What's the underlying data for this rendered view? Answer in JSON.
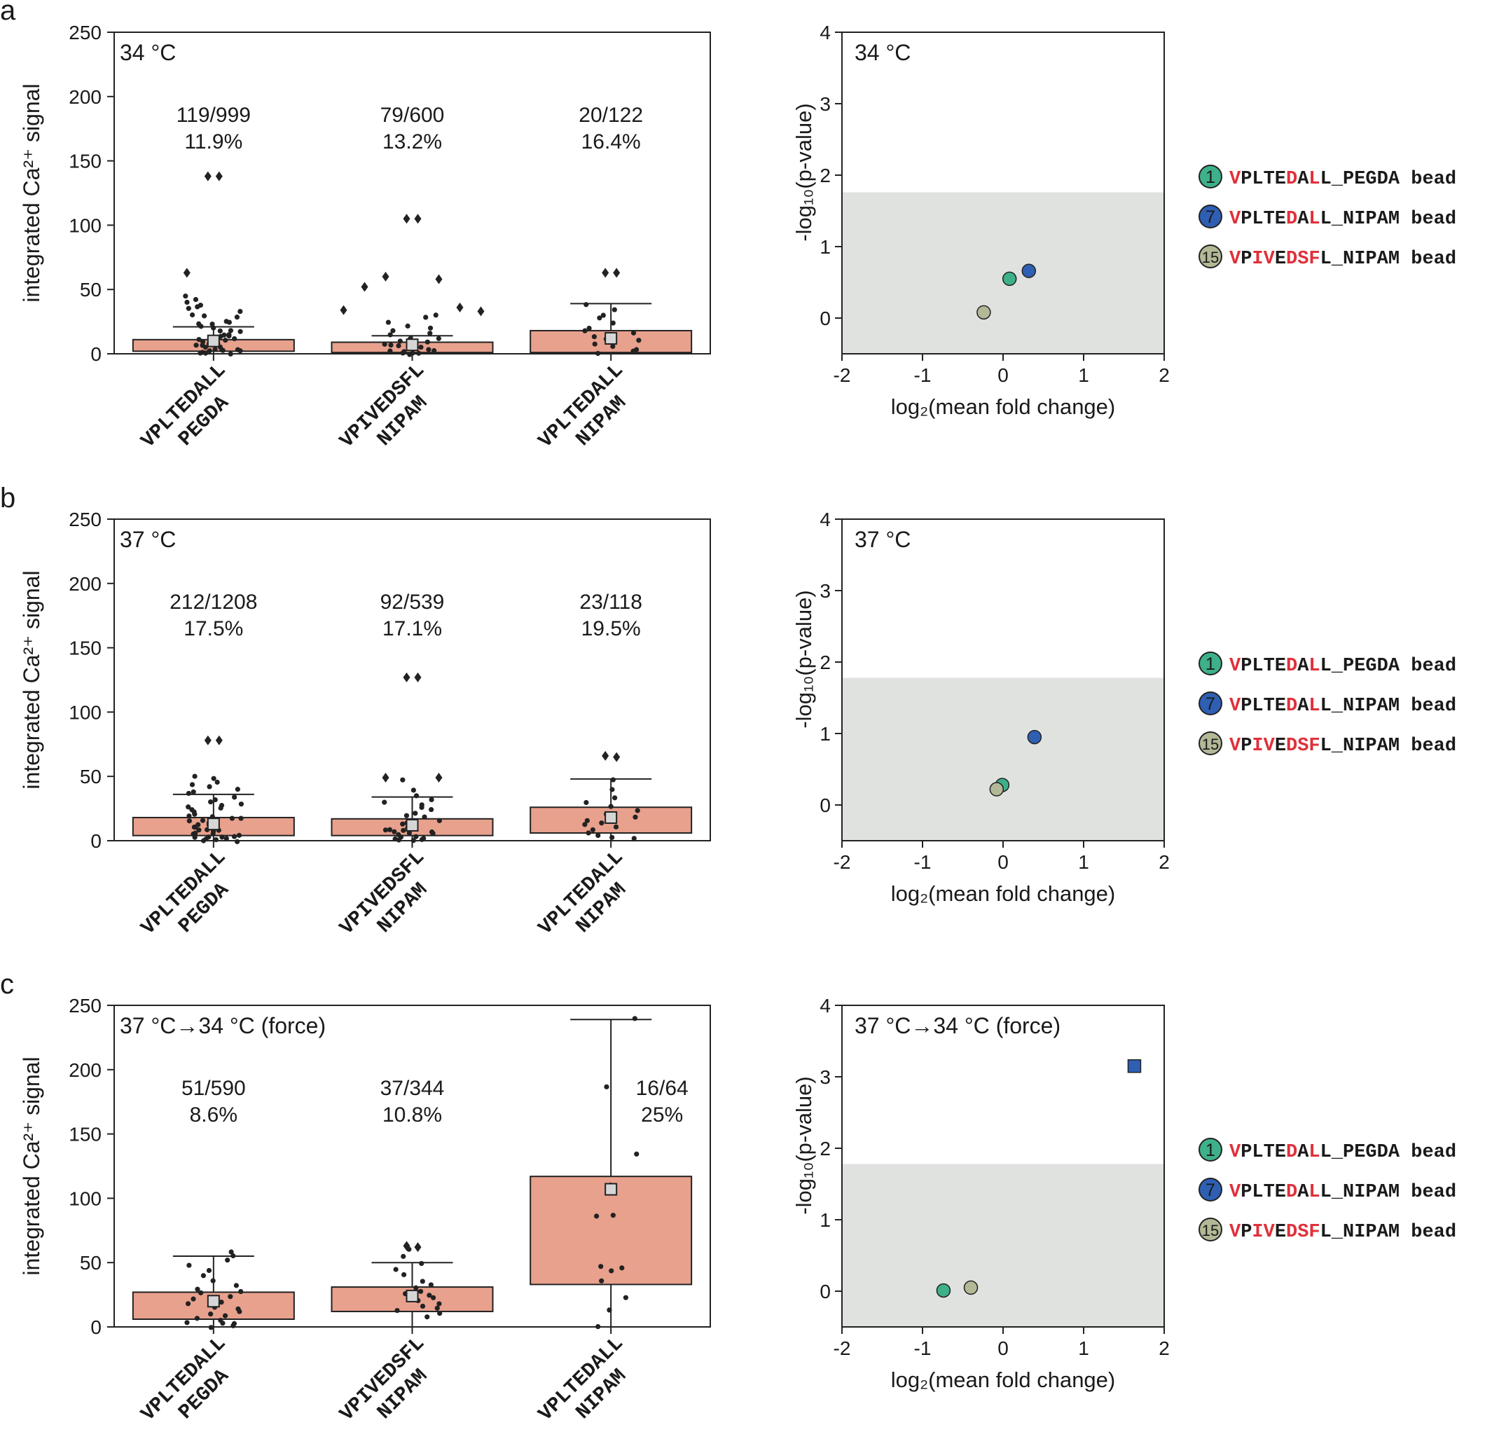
{
  "figure": {
    "colors": {
      "box": "#e8a18d",
      "shade": "#e0e2e0",
      "point": "#222222",
      "mean": "#d6d6d6",
      "red": "#e0303a",
      "teal": "#3eb08a",
      "blue": "#2f5fb3",
      "olive": "#b3b896"
    },
    "legend": [
      {
        "num": "1",
        "color": "teal",
        "segs": [
          [
            "V",
            "r"
          ],
          [
            "PLTE",
            "k"
          ],
          [
            "D",
            "r"
          ],
          [
            "A",
            "k"
          ],
          [
            "L",
            "r"
          ],
          [
            "L_PEGDA bead",
            "k"
          ]
        ]
      },
      {
        "num": "7",
        "color": "blue",
        "segs": [
          [
            "V",
            "r"
          ],
          [
            "PLTE",
            "k"
          ],
          [
            "D",
            "r"
          ],
          [
            "A",
            "k"
          ],
          [
            "L",
            "r"
          ],
          [
            "L_NIPAM bead",
            "k"
          ]
        ]
      },
      {
        "num": "15",
        "color": "olive",
        "segs": [
          [
            "V",
            "r"
          ],
          [
            "P",
            "k"
          ],
          [
            "IV",
            "r"
          ],
          [
            "E",
            "k"
          ],
          [
            "DSF",
            "r"
          ],
          [
            "L_NIPAM bead",
            "k"
          ]
        ]
      }
    ]
  },
  "chart_data": [
    {
      "panel": "a",
      "type": "box",
      "title": "34 °C",
      "ylabel": "integrated Ca²⁺ signal",
      "ylim": [
        0,
        250
      ],
      "yticks": [
        0,
        50,
        100,
        150,
        200,
        250
      ],
      "groups": [
        {
          "line1": "VPLTEDALL",
          "line2": "PEGDA",
          "count": "119/999",
          "pct": "11.9%",
          "q1": 2,
          "q3": 11,
          "wlo": 0,
          "whi": 21,
          "mean": 10,
          "outliers": [
            138,
            138,
            63
          ],
          "points": [
            45,
            42,
            40,
            38,
            36,
            35,
            33,
            31,
            30,
            28,
            26,
            25,
            23,
            22,
            20,
            18,
            17,
            15,
            14,
            12,
            11,
            10,
            9,
            8,
            7,
            6,
            5,
            4,
            3,
            2,
            1,
            0,
            15,
            9,
            6,
            3,
            1,
            0,
            24,
            18,
            13,
            7,
            4,
            2
          ]
        },
        {
          "line1": "VPIVEDSFL",
          "line2": "NIPAM",
          "count": "79/600",
          "pct": "13.2%",
          "q1": 1,
          "q3": 9,
          "wlo": 0,
          "whi": 14,
          "mean": 7,
          "outliers": [
            105,
            105,
            60,
            58,
            52,
            36,
            34,
            33
          ],
          "points": [
            30,
            28,
            25,
            22,
            20,
            18,
            16,
            14,
            12,
            10,
            9,
            8,
            6,
            5,
            4,
            3,
            2,
            1,
            0,
            11,
            7,
            4,
            2,
            1,
            0
          ]
        },
        {
          "line1": "VPLTEDALL",
          "line2": "NIPAM",
          "count": "20/122",
          "pct": "16.4%",
          "q1": 1,
          "q3": 18,
          "wlo": 0,
          "whi": 39,
          "mean": 12,
          "outliers": [
            63,
            63
          ],
          "points": [
            38,
            35,
            30,
            28,
            24,
            20,
            18,
            16,
            14,
            12,
            10,
            8,
            6,
            4,
            2,
            1
          ]
        }
      ]
    },
    {
      "panel": "a",
      "type": "scatter",
      "title": "34 °C",
      "xlabel": "log₂(mean fold change)",
      "ylabel": "-log₁₀(p-value)",
      "xlim": [
        -2,
        2
      ],
      "ylim": [
        -0.5,
        4
      ],
      "xticks": [
        -2,
        -1,
        0,
        1,
        2
      ],
      "yticks": [
        0,
        1,
        2,
        3,
        4
      ],
      "threshold": 1.76,
      "points": [
        {
          "x": 0.08,
          "y": 0.55,
          "id": "1",
          "shape": "circle"
        },
        {
          "x": 0.32,
          "y": 0.66,
          "id": "7",
          "shape": "circle"
        },
        {
          "x": -0.24,
          "y": 0.08,
          "id": "15",
          "shape": "circle"
        }
      ]
    },
    {
      "panel": "b",
      "type": "box",
      "title": "37 °C",
      "ylabel": "integrated Ca²⁺ signal",
      "ylim": [
        0,
        250
      ],
      "yticks": [
        0,
        50,
        100,
        150,
        200,
        250
      ],
      "groups": [
        {
          "line1": "VPLTEDALL",
          "line2": "PEGDA",
          "count": "212/1208",
          "pct": "17.5%",
          "q1": 4,
          "q3": 18,
          "wlo": 0,
          "whi": 36,
          "mean": 13,
          "outliers": [
            78,
            78
          ],
          "points": [
            50,
            48,
            46,
            44,
            42,
            40,
            38,
            36,
            34,
            32,
            30,
            28,
            26,
            24,
            22,
            20,
            19,
            18,
            16,
            15,
            14,
            13,
            12,
            11,
            10,
            9,
            8,
            7,
            6,
            5,
            4,
            3,
            2,
            1,
            0,
            25,
            17,
            11,
            6,
            3,
            1,
            0,
            29,
            21,
            14,
            8,
            4,
            2
          ]
        },
        {
          "line1": "VPIVEDSFL",
          "line2": "NIPAM",
          "count": "92/539",
          "pct": "17.1%",
          "q1": 4,
          "q3": 17,
          "wlo": 0,
          "whi": 34,
          "mean": 12,
          "outliers": [
            127,
            127,
            49,
            49
          ],
          "points": [
            47,
            40,
            35,
            32,
            30,
            28,
            26,
            24,
            22,
            20,
            18,
            16,
            14,
            12,
            10,
            9,
            8,
            7,
            6,
            5,
            4,
            3,
            2,
            1,
            0,
            13,
            9,
            6,
            3,
            1,
            0
          ]
        },
        {
          "line1": "VPLTEDALL",
          "line2": "NIPAM",
          "count": "23/118",
          "pct": "19.5%",
          "q1": 6,
          "q3": 26,
          "wlo": 0,
          "whi": 48,
          "mean": 18,
          "outliers": [
            66,
            65
          ],
          "points": [
            48,
            40,
            34,
            30,
            26,
            24,
            20,
            18,
            16,
            14,
            12,
            10,
            8,
            6,
            4,
            2,
            1
          ]
        }
      ]
    },
    {
      "panel": "b",
      "type": "scatter",
      "title": "37 °C",
      "xlabel": "log₂(mean fold change)",
      "ylabel": "-log₁₀(p-value)",
      "xlim": [
        -2,
        2
      ],
      "ylim": [
        -0.5,
        4
      ],
      "xticks": [
        -2,
        -1,
        0,
        1,
        2
      ],
      "yticks": [
        0,
        1,
        2,
        3,
        4
      ],
      "threshold": 1.78,
      "points": [
        {
          "x": -0.01,
          "y": 0.28,
          "id": "1",
          "shape": "circle"
        },
        {
          "x": 0.39,
          "y": 0.95,
          "id": "7",
          "shape": "circle"
        },
        {
          "x": -0.08,
          "y": 0.22,
          "id": "15",
          "shape": "circle"
        }
      ]
    },
    {
      "panel": "c",
      "type": "box",
      "title": "37 °C→34 °C (force)",
      "ylabel": "integrated Ca²⁺ signal",
      "ylim": [
        0,
        250
      ],
      "yticks": [
        0,
        50,
        100,
        150,
        200,
        250
      ],
      "groups": [
        {
          "line1": "VPLTEDALL",
          "line2": "PEGDA",
          "count": "51/590",
          "pct": "8.6%",
          "q1": 6,
          "q3": 27,
          "wlo": 0,
          "whi": 55,
          "mean": 20,
          "outliers": [],
          "points": [
            58,
            56,
            52,
            48,
            44,
            40,
            36,
            32,
            30,
            28,
            26,
            24,
            22,
            20,
            18,
            16,
            14,
            12,
            10,
            8,
            6,
            5,
            4,
            3,
            2,
            1,
            0
          ]
        },
        {
          "line1": "VPIVEDSFL",
          "line2": "NIPAM",
          "count": "37/344",
          "pct": "10.8%",
          "q1": 12,
          "q3": 31,
          "wlo": 0,
          "whi": 50,
          "mean": 24,
          "outliers": [
            63,
            62
          ],
          "points": [
            61,
            55,
            50,
            45,
            40,
            36,
            32,
            30,
            28,
            26,
            24,
            22,
            20,
            18,
            16,
            14,
            12,
            10,
            8
          ]
        },
        {
          "line1": "VPLTEDALL",
          "line2": "NIPAM",
          "count": "16/64",
          "pct": "25%",
          "q1": 33,
          "q3": 117,
          "wlo": 0,
          "whi": 239,
          "mean": 107,
          "outliers": [],
          "points": [
            239,
            186,
            134,
            111,
            86,
            86,
            47,
            46,
            44,
            36,
            22,
            13,
            0
          ]
        }
      ]
    },
    {
      "panel": "c",
      "type": "scatter",
      "title": "37 °C→34 °C (force)",
      "xlabel": "log₂(mean fold change)",
      "ylabel": "-log₁₀(p-value)",
      "xlim": [
        -2,
        2
      ],
      "ylim": [
        -0.5,
        4
      ],
      "xticks": [
        -2,
        -1,
        0,
        1,
        2
      ],
      "yticks": [
        0,
        1,
        2,
        3,
        4
      ],
      "threshold": 1.78,
      "points": [
        {
          "x": -0.74,
          "y": 0.01,
          "id": "1",
          "shape": "circle"
        },
        {
          "x": 1.63,
          "y": 3.15,
          "id": "7",
          "shape": "square"
        },
        {
          "x": -0.4,
          "y": 0.05,
          "id": "15",
          "shape": "circle"
        }
      ]
    }
  ]
}
